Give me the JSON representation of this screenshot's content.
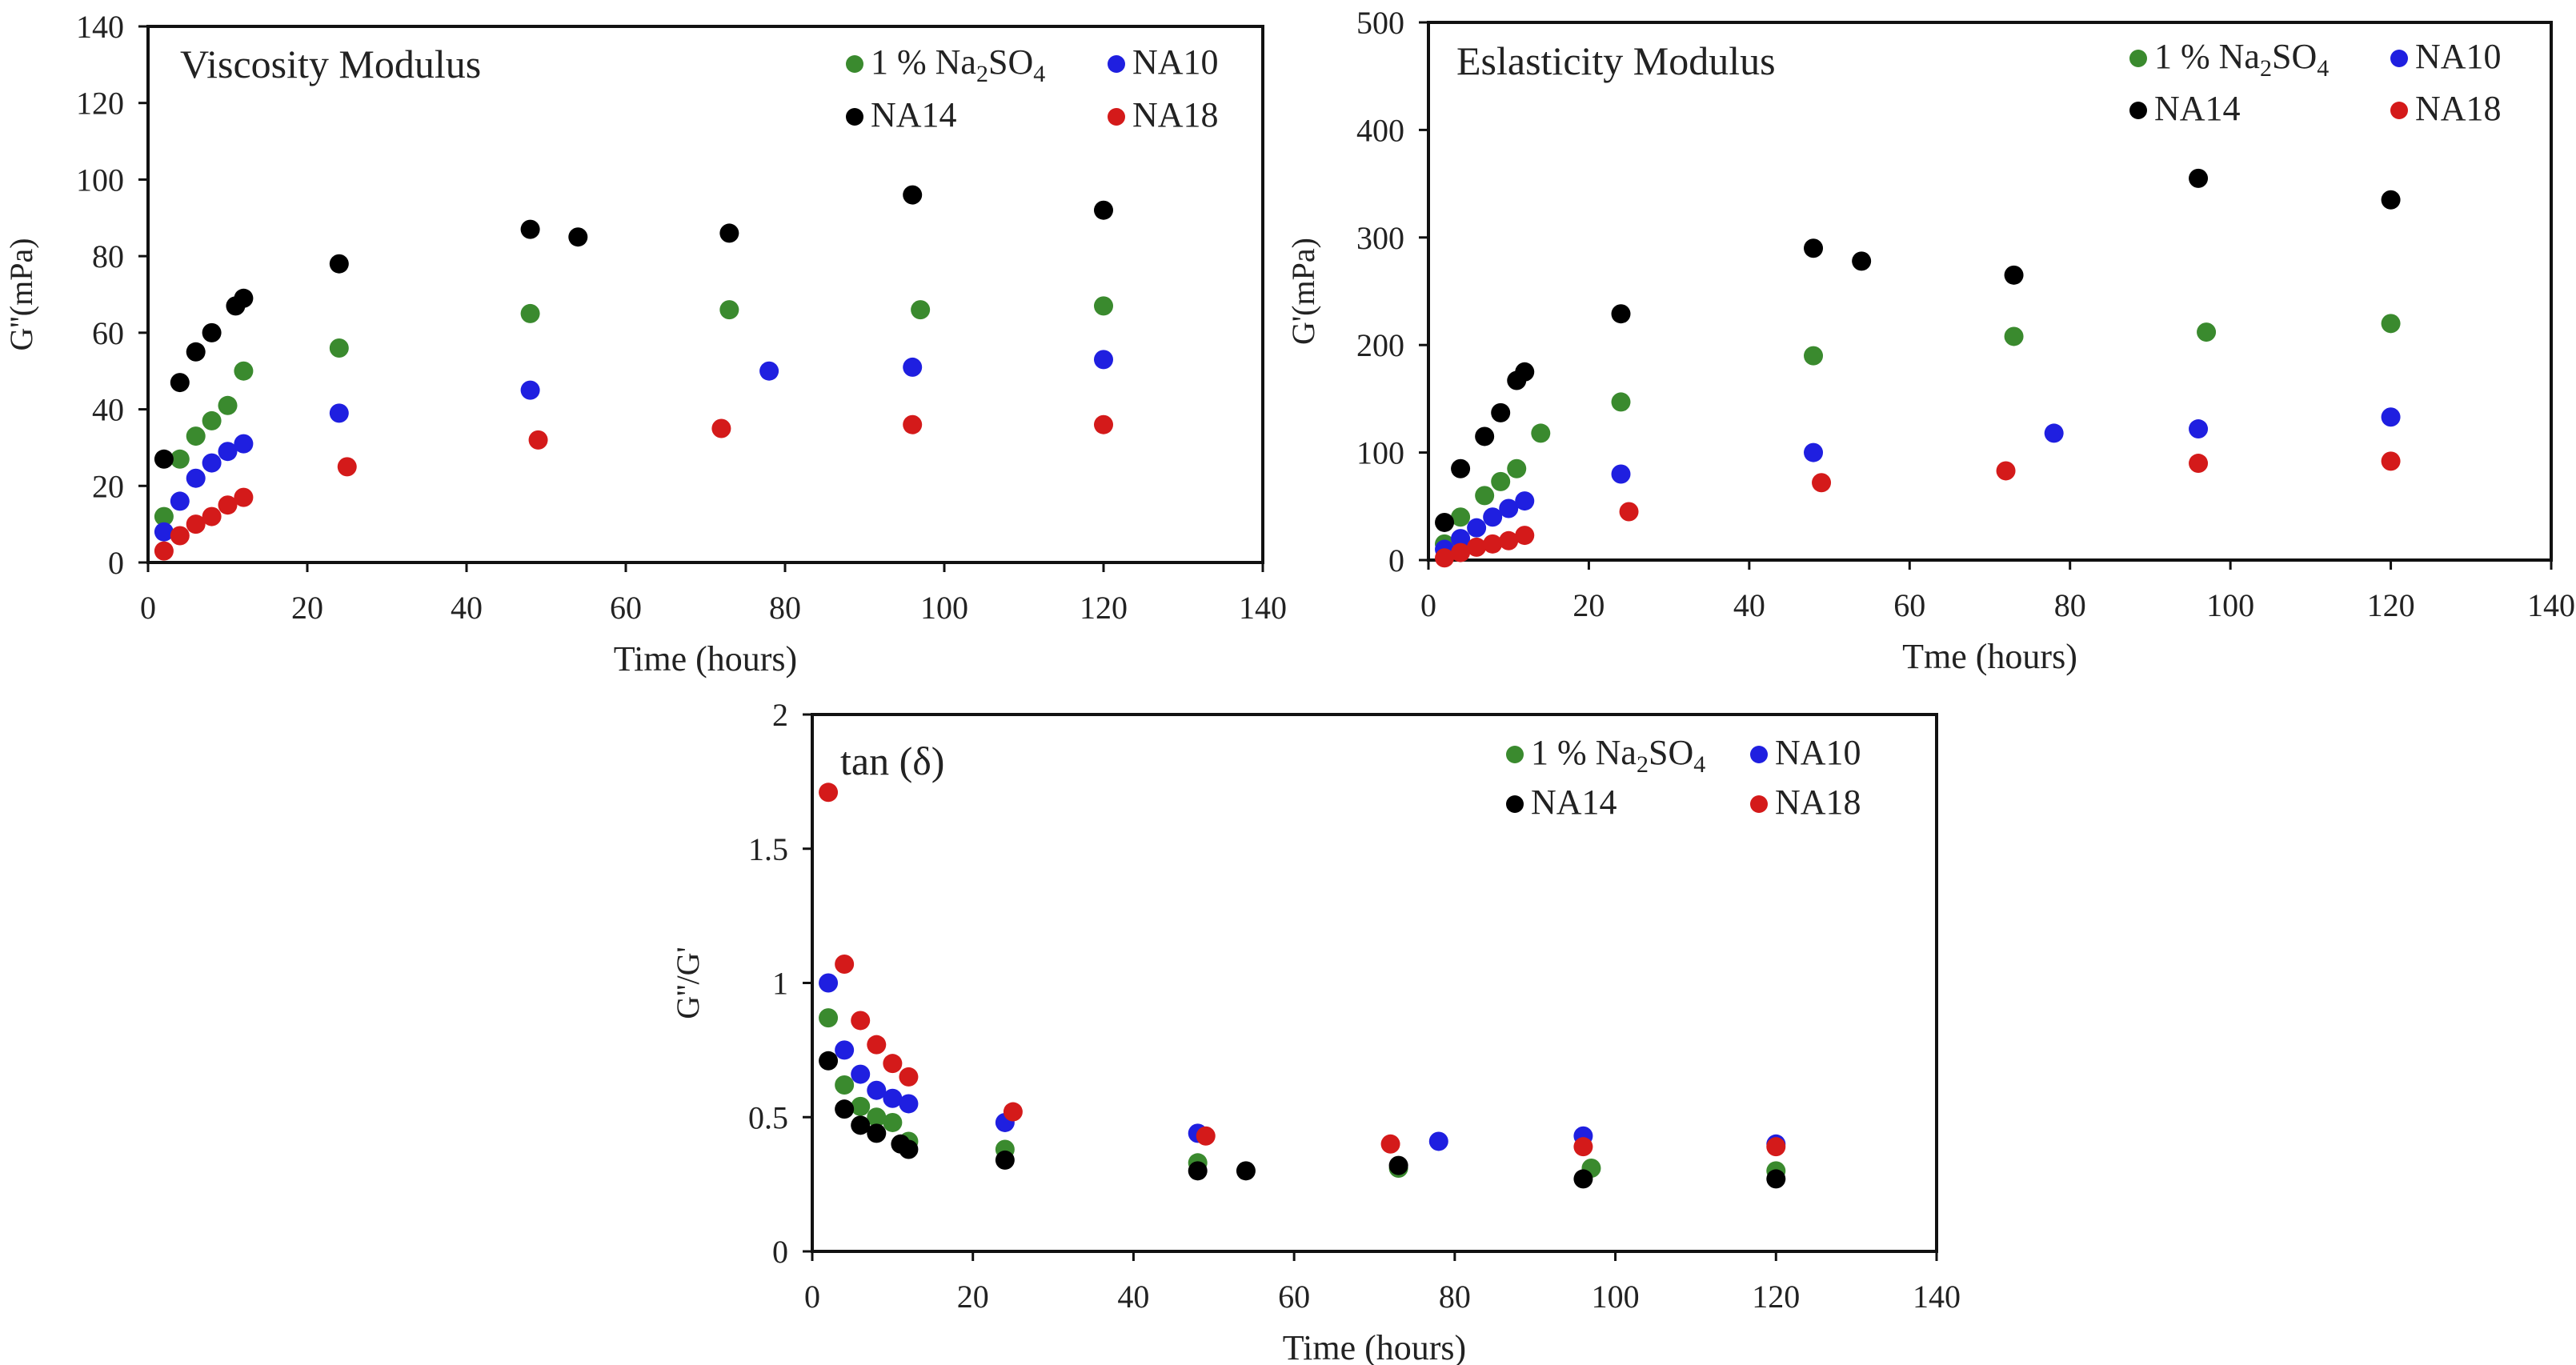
{
  "figure": {
    "description_none": ""
  },
  "chart_data": [
    {
      "id": "viscosity",
      "type": "scatter",
      "title": "Viscosity Modulus",
      "xlabel": "Time (hours)",
      "ylabel": "G''(mPa)",
      "xlim": [
        0,
        140
      ],
      "ylim": [
        0,
        140
      ],
      "xticks": [
        "0",
        "20",
        "40",
        "60",
        "80",
        "100",
        "120",
        "140"
      ],
      "yticks": [
        "0",
        "20",
        "40",
        "60",
        "80",
        "100",
        "120",
        "140"
      ],
      "xtick_values": [
        0,
        20,
        40,
        60,
        80,
        100,
        120,
        140
      ],
      "ytick_values": [
        0,
        20,
        40,
        60,
        80,
        100,
        120,
        140
      ],
      "legend": [
        {
          "name": "1 % Na2SO4",
          "label_main": "1 % Na",
          "label_sub1": "2",
          "label_mid": "SO",
          "label_sub2": "4",
          "color": "#3a8a2e"
        },
        {
          "name": "NA10",
          "label_main": "NA10",
          "color": "#1f1fe0"
        },
        {
          "name": "NA14",
          "label_main": "NA14",
          "color": "#000000"
        },
        {
          "name": "NA18",
          "label_main": "NA18",
          "color": "#d41a1a"
        }
      ],
      "series": [
        {
          "name": "1 % Na2SO4",
          "color": "#3a8a2e",
          "x": [
            2,
            4,
            6,
            8,
            10,
            12,
            24,
            48,
            73,
            97,
            120
          ],
          "y": [
            12,
            27,
            33,
            37,
            41,
            50,
            56,
            65,
            66,
            66,
            67
          ]
        },
        {
          "name": "NA10",
          "color": "#1f1fe0",
          "x": [
            2,
            4,
            6,
            8,
            10,
            12,
            24,
            48,
            78,
            96,
            120
          ],
          "y": [
            8,
            16,
            22,
            26,
            29,
            31,
            39,
            45,
            50,
            51,
            53
          ]
        },
        {
          "name": "NA14",
          "color": "#000000",
          "x": [
            2,
            4,
            6,
            8,
            11,
            12,
            24,
            48,
            54,
            73,
            96,
            120
          ],
          "y": [
            27,
            47,
            55,
            60,
            67,
            69,
            78,
            87,
            85,
            86,
            96,
            92
          ]
        },
        {
          "name": "NA18",
          "color": "#d41a1a",
          "x": [
            2,
            4,
            6,
            8,
            10,
            12,
            25,
            49,
            72,
            96,
            120
          ],
          "y": [
            3,
            7,
            10,
            12,
            15,
            17,
            25,
            32,
            35,
            36,
            36
          ]
        }
      ]
    },
    {
      "id": "elasticity",
      "type": "scatter",
      "title": "Eslasticity Modulus",
      "xlabel": "Tme (hours)",
      "ylabel": "G'(mPa)",
      "xlim": [
        0,
        140
      ],
      "ylim": [
        0,
        500
      ],
      "xticks": [
        "0",
        "20",
        "40",
        "60",
        "80",
        "100",
        "120",
        "140"
      ],
      "yticks": [
        "0",
        "100",
        "200",
        "300",
        "400",
        "500"
      ],
      "xtick_values": [
        0,
        20,
        40,
        60,
        80,
        100,
        120,
        140
      ],
      "ytick_values": [
        0,
        100,
        200,
        300,
        400,
        500
      ],
      "legend": [
        {
          "name": "1 % Na2SO4",
          "label_main": "1 % Na",
          "label_sub1": "2",
          "label_mid": "SO",
          "label_sub2": "4",
          "color": "#3a8a2e"
        },
        {
          "name": "NA10",
          "label_main": "NA10",
          "color": "#1f1fe0"
        },
        {
          "name": "NA14",
          "label_main": "NA14",
          "color": "#000000"
        },
        {
          "name": "NA18",
          "label_main": "NA18",
          "color": "#d41a1a"
        }
      ],
      "series": [
        {
          "name": "1 % Na2SO4",
          "color": "#3a8a2e",
          "x": [
            2,
            4,
            7,
            9,
            11,
            14,
            24,
            48,
            73,
            97,
            120
          ],
          "y": [
            15,
            40,
            60,
            73,
            85,
            118,
            147,
            190,
            208,
            212,
            220
          ]
        },
        {
          "name": "NA10",
          "color": "#1f1fe0",
          "x": [
            2,
            4,
            6,
            8,
            10,
            12,
            24,
            48,
            78,
            96,
            120
          ],
          "y": [
            10,
            20,
            30,
            40,
            48,
            55,
            80,
            100,
            118,
            122,
            133
          ]
        },
        {
          "name": "NA14",
          "color": "#000000",
          "x": [
            2,
            4,
            7,
            9,
            11,
            12,
            24,
            48,
            54,
            73,
            96,
            120
          ],
          "y": [
            35,
            85,
            115,
            137,
            167,
            175,
            229,
            290,
            278,
            265,
            355,
            335
          ]
        },
        {
          "name": "NA18",
          "color": "#d41a1a",
          "x": [
            2,
            4,
            6,
            8,
            10,
            12,
            25,
            49,
            72,
            96,
            120
          ],
          "y": [
            2,
            7,
            12,
            15,
            18,
            23,
            45,
            72,
            83,
            90,
            92
          ]
        }
      ]
    },
    {
      "id": "tan",
      "type": "scatter",
      "title": "tan (δ)",
      "xlabel": "Time (hours)",
      "ylabel": "G''/G'",
      "xlim": [
        0,
        140
      ],
      "ylim": [
        0,
        2
      ],
      "xticks": [
        "0",
        "20",
        "40",
        "60",
        "80",
        "100",
        "120",
        "140"
      ],
      "yticks": [
        "0",
        "0.5",
        "1",
        "1.5",
        "2"
      ],
      "xtick_values": [
        0,
        20,
        40,
        60,
        80,
        100,
        120,
        140
      ],
      "ytick_values": [
        0,
        0.5,
        1,
        1.5,
        2
      ],
      "legend": [
        {
          "name": "1 % Na2SO4",
          "label_main": "1 % Na",
          "label_sub1": "2",
          "label_mid": "SO",
          "label_sub2": "4",
          "color": "#3a8a2e"
        },
        {
          "name": "NA10",
          "label_main": "NA10",
          "color": "#1f1fe0"
        },
        {
          "name": "NA14",
          "label_main": "NA14",
          "color": "#000000"
        },
        {
          "name": "NA18",
          "label_main": "NA18",
          "color": "#d41a1a"
        }
      ],
      "series": [
        {
          "name": "1 % Na2SO4",
          "color": "#3a8a2e",
          "x": [
            2,
            4,
            6,
            8,
            10,
            12,
            24,
            48,
            73,
            97,
            120
          ],
          "y": [
            0.87,
            0.62,
            0.54,
            0.5,
            0.48,
            0.41,
            0.38,
            0.33,
            0.31,
            0.31,
            0.3
          ]
        },
        {
          "name": "NA10",
          "color": "#1f1fe0",
          "x": [
            2,
            4,
            6,
            8,
            10,
            12,
            24,
            48,
            78,
            96,
            120
          ],
          "y": [
            1.0,
            0.75,
            0.66,
            0.6,
            0.57,
            0.55,
            0.48,
            0.44,
            0.41,
            0.43,
            0.4
          ]
        },
        {
          "name": "NA14",
          "color": "#000000",
          "x": [
            2,
            4,
            6,
            8,
            11,
            12,
            24,
            48,
            54,
            73,
            96,
            120
          ],
          "y": [
            0.71,
            0.53,
            0.47,
            0.44,
            0.4,
            0.38,
            0.34,
            0.3,
            0.3,
            0.32,
            0.27,
            0.27
          ]
        },
        {
          "name": "NA18",
          "color": "#d41a1a",
          "x": [
            2,
            4,
            6,
            8,
            10,
            12,
            25,
            49,
            72,
            96,
            120
          ],
          "y": [
            1.71,
            1.07,
            0.86,
            0.77,
            0.7,
            0.65,
            0.52,
            0.43,
            0.4,
            0.39,
            0.39
          ]
        }
      ]
    }
  ]
}
